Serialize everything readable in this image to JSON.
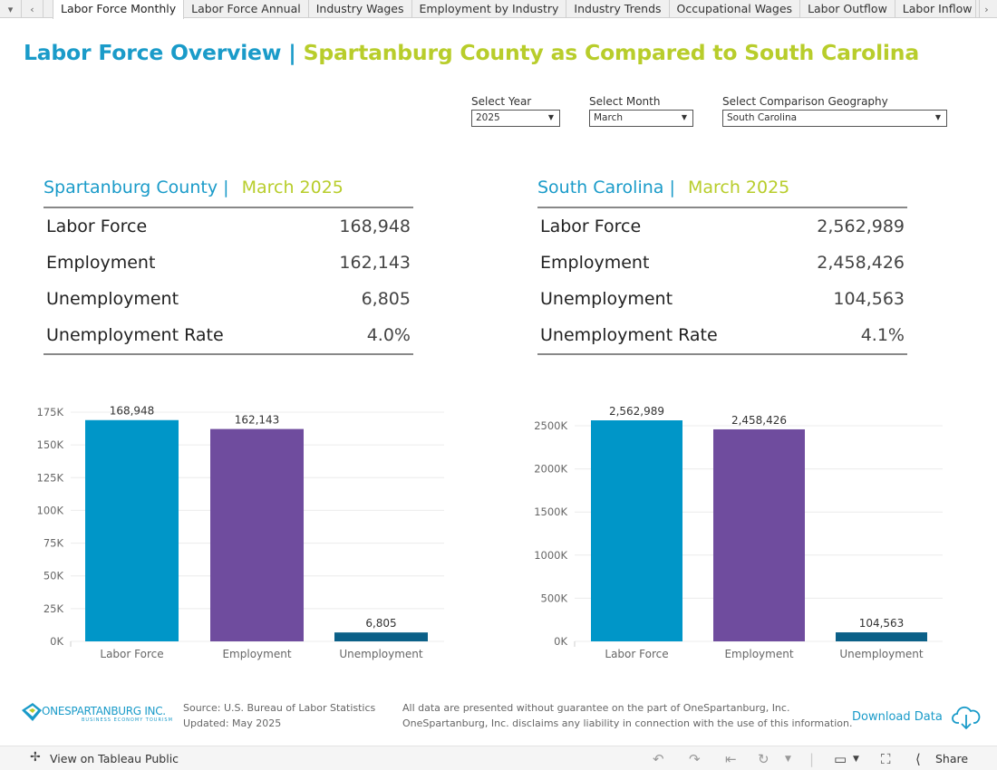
{
  "tabs": [
    "Labor Force Monthly",
    "Labor Force Annual",
    "Industry Wages",
    "Employment by Industry",
    "Industry Trends",
    "Occupational Wages",
    "Labor Outflow",
    "Labor Inflow"
  ],
  "header": {
    "title_part1": "Labor Force Overview",
    "separator": "|",
    "title_part2": "Spartanburg County as Compared to South Carolina"
  },
  "filters": {
    "year": {
      "label": "Select Year",
      "value": "2025"
    },
    "month": {
      "label": "Select Month",
      "value": "March"
    },
    "geography": {
      "label": "Select  Comparison Geography",
      "value": "South Carolina"
    }
  },
  "panels": [
    {
      "geo": "Spartanburg County",
      "pipe": "|",
      "period": "March 2025",
      "rows": [
        {
          "label": "Labor Force",
          "value": "168,948"
        },
        {
          "label": "Employment",
          "value": "162,143"
        },
        {
          "label": "Unemployment",
          "value": "6,805"
        },
        {
          "label": "Unemployment Rate",
          "value": "4.0%"
        }
      ]
    },
    {
      "geo": "South Carolina",
      "pipe": "|",
      "period": "March 2025",
      "rows": [
        {
          "label": "Labor Force",
          "value": "2,562,989"
        },
        {
          "label": "Employment",
          "value": "2,458,426"
        },
        {
          "label": "Unemployment",
          "value": "104,563"
        },
        {
          "label": "Unemployment Rate",
          "value": "4.1%"
        }
      ]
    }
  ],
  "chart_data": [
    {
      "type": "bar",
      "categories": [
        "Labor Force",
        "Employment",
        "Unemployment"
      ],
      "values": [
        168948,
        162143,
        6805
      ],
      "value_labels": [
        "168,948",
        "162,143",
        "6,805"
      ],
      "colors": [
        "#0096c8",
        "#6f4c9e",
        "#0b6088"
      ],
      "ylim": [
        0,
        175000
      ],
      "yticks": [
        0,
        25000,
        50000,
        75000,
        100000,
        125000,
        150000,
        175000
      ],
      "ytick_labels": [
        "0K",
        "25K",
        "50K",
        "75K",
        "100K",
        "125K",
        "150K",
        "175K"
      ],
      "grid": true
    },
    {
      "type": "bar",
      "categories": [
        "Labor Force",
        "Employment",
        "Unemployment"
      ],
      "values": [
        2562989,
        2458426,
        104563
      ],
      "value_labels": [
        "2,562,989",
        "2,458,426",
        "104,563"
      ],
      "colors": [
        "#0096c8",
        "#6f4c9e",
        "#0b6088"
      ],
      "ylim": [
        0,
        2500000
      ],
      "yticks": [
        0,
        500000,
        1000000,
        1500000,
        2000000,
        2500000
      ],
      "ytick_labels": [
        "0K",
        "500K",
        "1000K",
        "1500K",
        "2000K",
        "2500K"
      ],
      "grid": true
    }
  ],
  "footer": {
    "logo_text": "ONESPARTANBURG INC.",
    "logo_tagline": "BUSINESS  ECONOMY  TOURISM",
    "source": "Source:  U.S. Bureau of Labor Statistics",
    "updated": "Updated: May 2025",
    "disclaimer1": "All data are presented without guarantee on the part of OneSpartanburg, Inc.",
    "disclaimer2": "OneSpartanburg, Inc. disclaims any liability in connection with the use of this information.",
    "download": "Download Data"
  },
  "toolbar": {
    "view": "View on Tableau Public",
    "share": "Share"
  }
}
